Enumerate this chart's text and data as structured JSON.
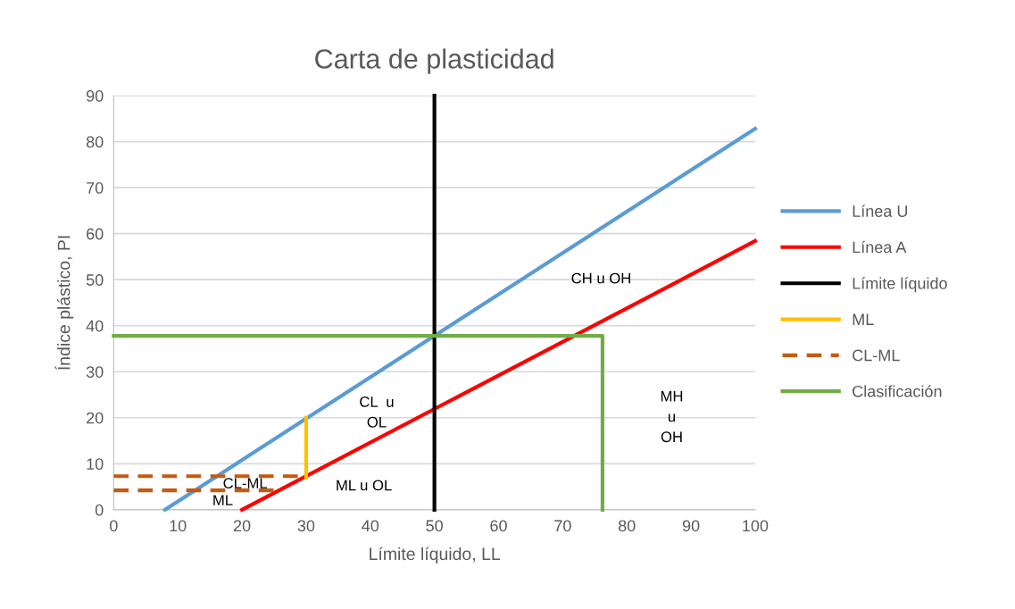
{
  "chart_data": {
    "type": "line",
    "title": "Carta de plasticidad",
    "xlabel": "Límite líquido, LL",
    "ylabel": "Índice plástico, PI",
    "xlim": [
      0,
      100
    ],
    "xticks": [
      0,
      10,
      20,
      30,
      40,
      50,
      60,
      70,
      80,
      90,
      100
    ],
    "ylim": [
      0,
      90
    ],
    "yticks": [
      0,
      10,
      20,
      30,
      40,
      50,
      60,
      70,
      80,
      90
    ],
    "grid": "y",
    "legend": "right",
    "marker": "none",
    "series": [
      {
        "name": "Línea U",
        "color": "#5b9bd5",
        "x": [
          8,
          100
        ],
        "values": [
          0,
          82.8
        ]
      },
      {
        "name": "Línea A",
        "color": "#ff0000",
        "x": [
          20,
          100
        ],
        "values": [
          0,
          58.4
        ]
      },
      {
        "name": "Límite líquido",
        "color": "#000000",
        "x": [
          50,
          50
        ],
        "values": [
          0,
          90
        ]
      },
      {
        "name": "ML",
        "color": "#ffc000",
        "x": [
          30,
          30
        ],
        "values": [
          7,
          20
        ]
      },
      {
        "name": "CL-ML",
        "color": "#c55a11",
        "line_style": "dashed",
        "x": [
          0,
          30
        ],
        "values": [
          7.3,
          7.3
        ]
      },
      {
        "color": "#c55a11",
        "line_style": "dashed",
        "x": [
          0,
          25.5
        ],
        "values": [
          4.2,
          4.2
        ]
      },
      {
        "name": "Clasificación",
        "color": "#70ad47",
        "x": [
          0,
          76.2,
          76.2
        ],
        "values": [
          37.8,
          37.8,
          0
        ]
      }
    ],
    "annotations": [
      "CH u OH",
      "CL  u\nOL",
      "MH\nu\nOH",
      "ML u OL",
      "CL-ML",
      "ML"
    ]
  }
}
